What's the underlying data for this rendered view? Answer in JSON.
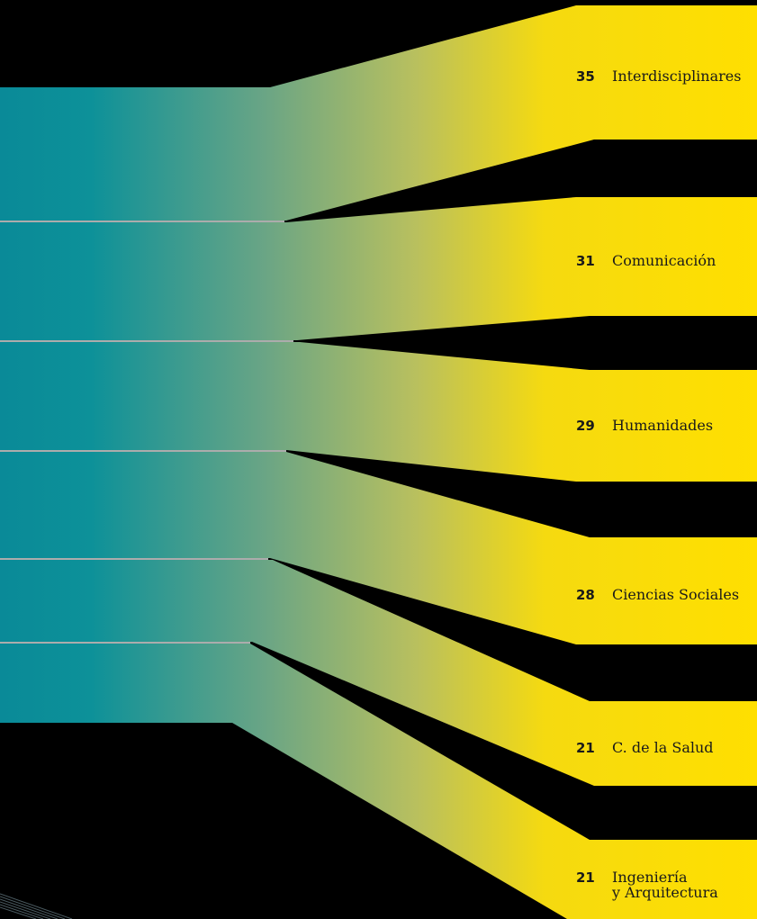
{
  "colors": {
    "background": "#000000",
    "teal": "#0a8f9c",
    "yellow": "#ffdd00",
    "divider": "#e6e6e6",
    "text": "#1a1a1a"
  },
  "categories": [
    {
      "count": "35",
      "name": "Interdisciplinares"
    },
    {
      "count": "31",
      "name": "Comunicación"
    },
    {
      "count": "29",
      "name": "Humanidades"
    },
    {
      "count": "28",
      "name": "Ciencias Sociales"
    },
    {
      "count": "21",
      "name": "C. de la Salud"
    },
    {
      "count": "21",
      "name_line1": "Ingeniería",
      "name_line2": "y Arquitectura"
    }
  ]
}
